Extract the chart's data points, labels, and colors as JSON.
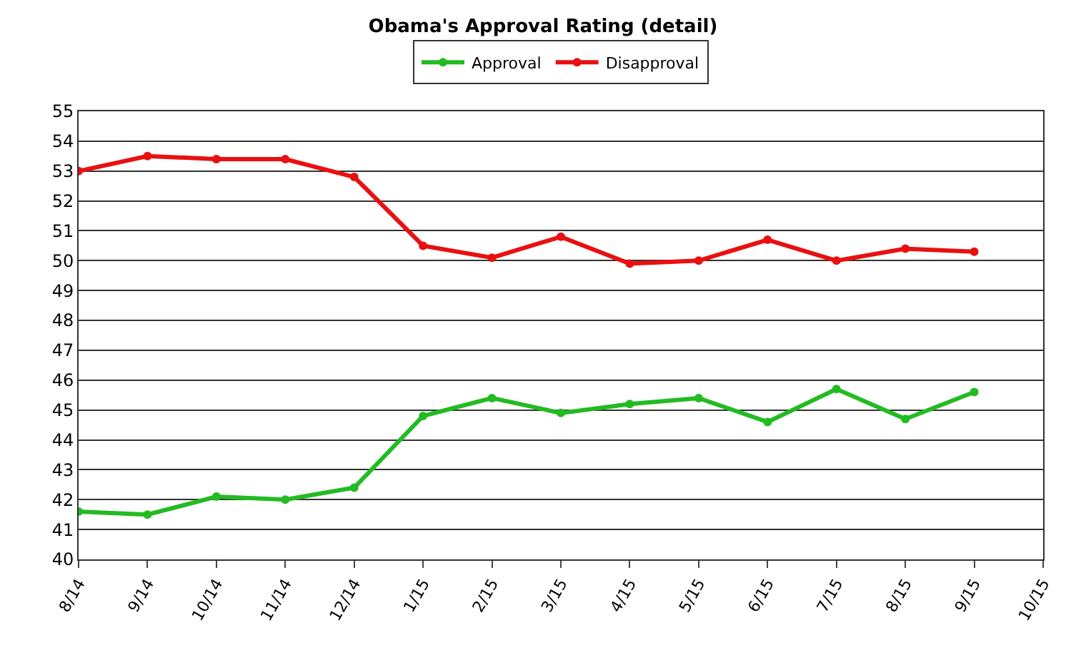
{
  "chart_data": {
    "type": "line",
    "title": "Obama's Approval Rating (detail)",
    "categories": [
      "8/14",
      "9/14",
      "10/14",
      "11/14",
      "12/14",
      "1/15",
      "2/15",
      "3/15",
      "4/15",
      "5/15",
      "6/15",
      "7/15",
      "8/15",
      "9/15",
      "10/15"
    ],
    "series": [
      {
        "name": "Approval",
        "color": "#22bb22",
        "values": [
          41.6,
          41.5,
          42.1,
          42.0,
          42.4,
          44.8,
          45.4,
          44.9,
          45.2,
          45.4,
          44.6,
          45.7,
          44.7,
          45.6,
          null
        ]
      },
      {
        "name": "Disapproval",
        "color": "#e81010",
        "values": [
          53.0,
          53.5,
          53.4,
          53.4,
          52.8,
          50.5,
          50.1,
          50.8,
          49.9,
          50.0,
          50.7,
          50.0,
          50.4,
          50.3,
          null
        ]
      }
    ],
    "ylim": [
      40,
      55
    ],
    "yticks": [
      40,
      41,
      42,
      43,
      44,
      45,
      46,
      47,
      48,
      49,
      50,
      51,
      52,
      53,
      54,
      55
    ],
    "grid": "y",
    "legend": "top",
    "marker": "circle",
    "line_style": "solid"
  }
}
